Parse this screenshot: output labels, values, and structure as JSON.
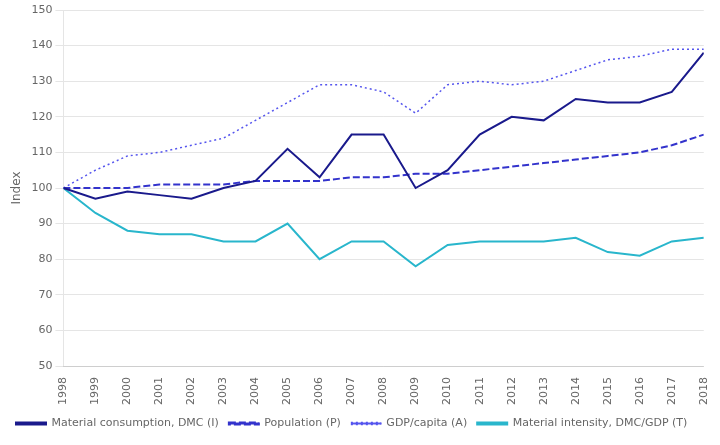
{
  "chart_data": {
    "type": "line",
    "ylabel": "Index",
    "x": [
      1998,
      1999,
      2000,
      2001,
      2002,
      2003,
      2004,
      2005,
      2006,
      2007,
      2008,
      2009,
      2010,
      2011,
      2012,
      2013,
      2014,
      2015,
      2016,
      2017,
      2018
    ],
    "series": [
      {
        "name": "Material consumption, DMC (I)",
        "color": "#1a1a8c",
        "line_style": "solid",
        "values": [
          100,
          97,
          99,
          98,
          97,
          100,
          102,
          111,
          103,
          115,
          115,
          100,
          105,
          115,
          120,
          119,
          125,
          124,
          124,
          127,
          138
        ]
      },
      {
        "name": "Population (P)",
        "color": "#3333cc",
        "line_style": "dashed",
        "values": [
          100,
          100,
          100,
          101,
          101,
          101,
          102,
          102,
          102,
          103,
          103,
          104,
          104,
          105,
          106,
          107,
          108,
          109,
          110,
          112,
          115
        ]
      },
      {
        "name": "GDP/capita (A)",
        "color": "#5555ee",
        "line_style": "dotted",
        "values": [
          100,
          105,
          109,
          110,
          112,
          114,
          119,
          124,
          129,
          129,
          127,
          121,
          129,
          130,
          129,
          130,
          133,
          136,
          137,
          139,
          139
        ]
      },
      {
        "name": "Material intensity, DMC/GDP (T)",
        "color": "#29b6cc",
        "line_style": "solid",
        "values": [
          100,
          93,
          88,
          87,
          87,
          85,
          85,
          90,
          80,
          85,
          85,
          78,
          84,
          85,
          85,
          85,
          86,
          82,
          81,
          85,
          86
        ]
      }
    ],
    "xlim": [
      1998,
      2018
    ],
    "xticks": [
      1998,
      1999,
      2000,
      2001,
      2002,
      2003,
      2004,
      2005,
      2006,
      2007,
      2008,
      2009,
      2010,
      2011,
      2012,
      2013,
      2014,
      2015,
      2016,
      2017,
      2018
    ],
    "ylim": [
      50,
      150
    ],
    "yticks": [
      50,
      60,
      70,
      80,
      90,
      100,
      110,
      120,
      130,
      140,
      150
    ],
    "grid": "y",
    "legend": "bottom"
  }
}
